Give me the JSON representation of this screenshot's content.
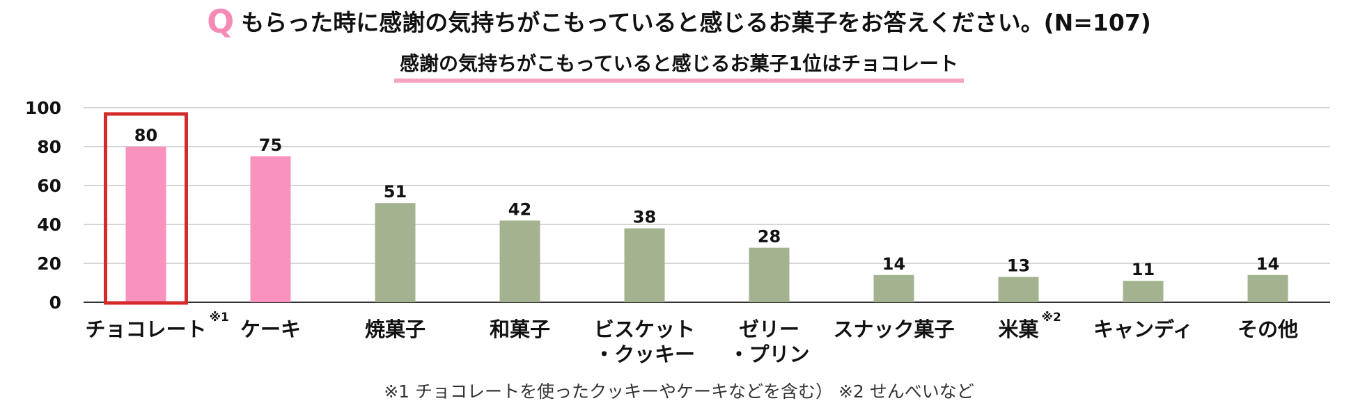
{
  "question": {
    "mark": "Q",
    "text": "もらった時に感謝の気持ちがこもっていると感じるお菓子をお答えください。(N=107)"
  },
  "subtitle": "感謝の気持ちがこもっていると感じるお菓子1位はチョコレート",
  "footnote": "※1  チョコレートを使ったクッキーやケーキなどを含む）  ※2  せんべいなど",
  "colors": {
    "highlight": "#f993bd",
    "other": "#a3b38f",
    "box": "#d42a2a",
    "top_value": "#c52828",
    "grid": "#bdbdbd",
    "axis": "#333333"
  },
  "chart_data": {
    "type": "bar",
    "categories": [
      "チョコレート",
      "ケーキ",
      "焼菓子",
      "和菓子",
      "ビスケット・クッキー",
      "ゼリー・プリン",
      "スナック菓子",
      "米菓",
      "キャンディ",
      "その他"
    ],
    "category_lines": [
      [
        "チョコレート"
      ],
      [
        "ケーキ"
      ],
      [
        "焼菓子"
      ],
      [
        "和菓子"
      ],
      [
        "ビスケット",
        "・クッキー"
      ],
      [
        "ゼリー",
        "・プリン"
      ],
      [
        "スナック菓子"
      ],
      [
        "米菓"
      ],
      [
        "キャンディ"
      ],
      [
        "その他"
      ]
    ],
    "category_notes": [
      "※1",
      "",
      "",
      "",
      "",
      "",
      "",
      "※2",
      "",
      ""
    ],
    "values": [
      80,
      75,
      51,
      42,
      38,
      28,
      14,
      13,
      11,
      14
    ],
    "data_labels": [
      "80",
      "75",
      "51",
      "42",
      "38",
      "28",
      "14",
      "13",
      "11",
      "14"
    ],
    "highlighted": [
      true,
      true,
      false,
      false,
      false,
      false,
      false,
      false,
      false,
      false
    ],
    "boxed_index": 0,
    "ylim": [
      0,
      100
    ],
    "yticks": [
      0,
      20,
      40,
      60,
      80,
      100
    ],
    "grid": true
  }
}
